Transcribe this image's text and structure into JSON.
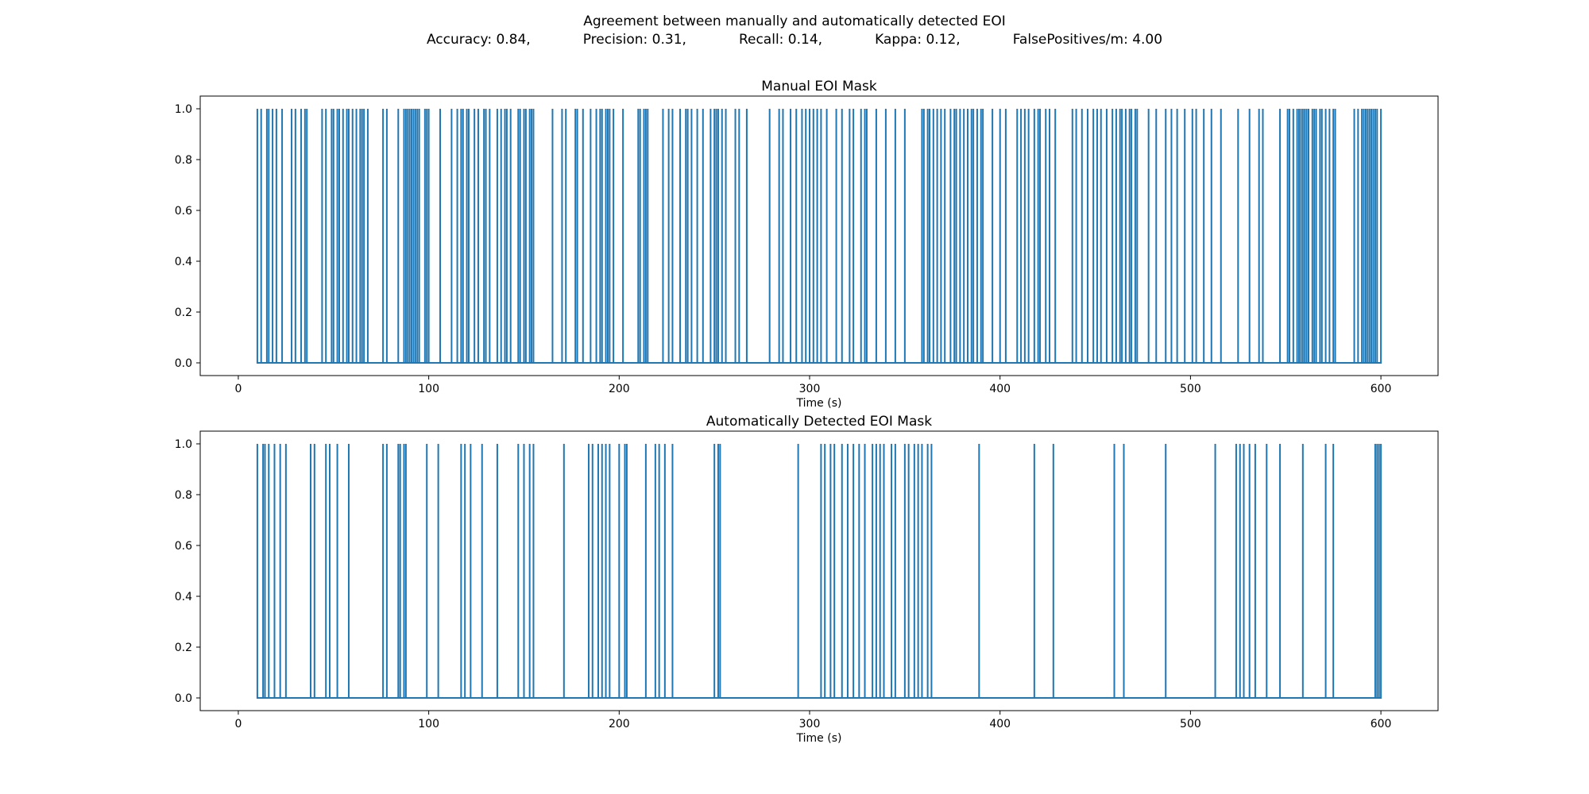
{
  "suptitle": "Agreement between manually and automatically detected EOI",
  "metrics": [
    "Accuracy: 0.84,",
    "Precision: 0.31,",
    "Recall: 0.14,",
    "Kappa: 0.12,",
    "FalsePositives/m: 4.00"
  ],
  "colors": {
    "series": "#1f77b4",
    "axes": "#000000"
  },
  "chart_data": [
    {
      "type": "line",
      "title": "Manual EOI Mask",
      "xlabel": "Time (s)",
      "ylabel": "",
      "xlim": [
        -20,
        630
      ],
      "ylim": [
        -0.05,
        1.05
      ],
      "x_ticks": [
        0,
        100,
        200,
        300,
        400,
        500,
        600
      ],
      "y_ticks": [
        0.0,
        0.2,
        0.4,
        0.6,
        0.8,
        1.0
      ],
      "grid": false,
      "series": [
        {
          "start": 10,
          "end": 600,
          "events_at_1": [
            10,
            12,
            15,
            16,
            18,
            20,
            23,
            28,
            30,
            33,
            35,
            36,
            44,
            46,
            49,
            50,
            52,
            53,
            55,
            57,
            58,
            60,
            62,
            64,
            65,
            66,
            68,
            76,
            78,
            84,
            87,
            88,
            89,
            90,
            91,
            92,
            93,
            94,
            95,
            98,
            99,
            100,
            106,
            112,
            115,
            117,
            118,
            120,
            121,
            124,
            126,
            129,
            130,
            132,
            136,
            138,
            140,
            141,
            143,
            147,
            148,
            150,
            151,
            153,
            154,
            155,
            165,
            170,
            172,
            177,
            178,
            181,
            185,
            188,
            190,
            191,
            193,
            194,
            195,
            197,
            202,
            210,
            211,
            213,
            214,
            215,
            223,
            226,
            228,
            232,
            235,
            236,
            238,
            241,
            244,
            248,
            250,
            251,
            252,
            254,
            256,
            261,
            263,
            267,
            279,
            284,
            286,
            290,
            293,
            296,
            298,
            300,
            302,
            304,
            306,
            309,
            314,
            317,
            321,
            323,
            327,
            329,
            330,
            335,
            340,
            345,
            350,
            359,
            360,
            362,
            363,
            365,
            367,
            369,
            371,
            374,
            376,
            377,
            379,
            381,
            383,
            385,
            386,
            388,
            390,
            391,
            396,
            400,
            403,
            409,
            411,
            413,
            415,
            418,
            420,
            421,
            424,
            426,
            429,
            438,
            440,
            443,
            446,
            449,
            451,
            453,
            456,
            459,
            461,
            463,
            464,
            466,
            468,
            469,
            471,
            472,
            478,
            482,
            487,
            490,
            493,
            497,
            501,
            503,
            507,
            511,
            516,
            525,
            531,
            536,
            538,
            547,
            551,
            552,
            554,
            556,
            557,
            558,
            559,
            560,
            561,
            562,
            564,
            565,
            566,
            568,
            569,
            571,
            573,
            575,
            576,
            586,
            588,
            590,
            591,
            592,
            593,
            594,
            595,
            596,
            597,
            598,
            600
          ]
        }
      ]
    },
    {
      "type": "line",
      "title": "Automatically Detected EOI Mask",
      "xlabel": "Time (s)",
      "ylabel": "",
      "xlim": [
        -20,
        630
      ],
      "ylim": [
        -0.05,
        1.05
      ],
      "x_ticks": [
        0,
        100,
        200,
        300,
        400,
        500,
        600
      ],
      "y_ticks": [
        0.0,
        0.2,
        0.4,
        0.6,
        0.8,
        1.0
      ],
      "grid": false,
      "series": [
        {
          "start": 10,
          "end": 600,
          "events_at_1": [
            10,
            13,
            14,
            16,
            19,
            22,
            25,
            38,
            40,
            46,
            48,
            52,
            58,
            76,
            78,
            84,
            85,
            87,
            88,
            99,
            105,
            117,
            119,
            122,
            128,
            136,
            147,
            150,
            153,
            155,
            171,
            184,
            186,
            189,
            191,
            193,
            195,
            200,
            203,
            204,
            214,
            219,
            221,
            224,
            228,
            250,
            252,
            253,
            294,
            306,
            308,
            311,
            313,
            317,
            320,
            323,
            326,
            329,
            333,
            335,
            337,
            339,
            343,
            345,
            350,
            352,
            355,
            357,
            359,
            362,
            364,
            389,
            418,
            428,
            460,
            465,
            487,
            513,
            524,
            526,
            528,
            531,
            534,
            540,
            547,
            559,
            571,
            575,
            597,
            598,
            599,
            600
          ]
        }
      ]
    }
  ]
}
